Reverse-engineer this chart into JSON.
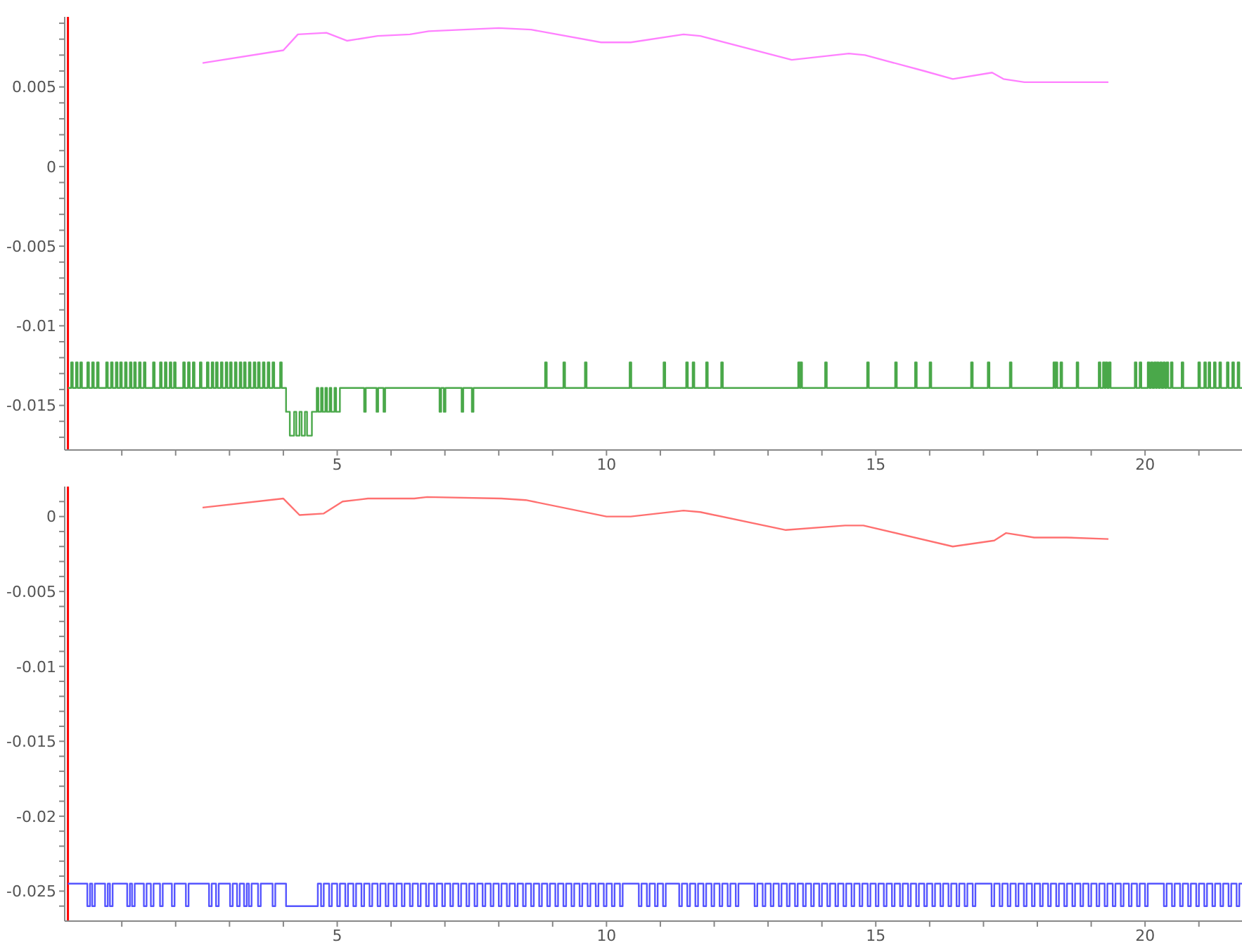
{
  "chart_data": [
    {
      "type": "line",
      "xlim": [
        -0.06,
        21.8
      ],
      "xticks": [
        {
          "value": 1,
          "label": null
        },
        {
          "value": 2,
          "label": null
        },
        {
          "value": 3,
          "label": null
        },
        {
          "value": 4,
          "label": null
        },
        5,
        {
          "value": 6,
          "label": null
        },
        {
          "value": 7,
          "label": null
        },
        {
          "value": 8,
          "label": null
        },
        {
          "value": 9,
          "label": null
        },
        10,
        {
          "value": 11,
          "label": null
        },
        {
          "value": 12,
          "label": null
        },
        {
          "value": 13,
          "label": null
        },
        {
          "value": 14,
          "label": null
        },
        15,
        {
          "value": 16,
          "label": null
        },
        {
          "value": 17,
          "label": null
        },
        {
          "value": 18,
          "label": null
        },
        {
          "value": 19,
          "label": null
        },
        20,
        {
          "value": 21,
          "label": null
        }
      ],
      "ylim": [
        -0.0178,
        0.0094
      ],
      "yticks": [
        {
          "value": -0.017,
          "label": null
        },
        {
          "value": -0.016,
          "label": null
        },
        -0.015,
        {
          "value": -0.014,
          "label": null
        },
        {
          "value": -0.013,
          "label": null
        },
        {
          "value": -0.012,
          "label": null
        },
        {
          "value": -0.011,
          "label": null
        },
        -0.01,
        {
          "value": -0.009,
          "label": null
        },
        {
          "value": -0.008,
          "label": null
        },
        {
          "value": -0.007,
          "label": null
        },
        {
          "value": -0.006,
          "label": null
        },
        -0.005,
        {
          "value": -0.004,
          "label": null
        },
        {
          "value": -0.003,
          "label": null
        },
        {
          "value": -0.002,
          "label": null
        },
        {
          "value": -0.001,
          "label": null
        },
        0,
        {
          "value": 0.001,
          "label": null
        },
        {
          "value": 0.002,
          "label": null
        },
        {
          "value": 0.003,
          "label": null
        },
        {
          "value": 0.004,
          "label": null
        },
        0.005,
        {
          "value": 0.006,
          "label": null
        },
        {
          "value": 0.007,
          "label": null
        },
        {
          "value": 0.008,
          "label": null
        },
        {
          "value": 0.009,
          "label": null
        }
      ],
      "ref_lines": [
        {
          "axis": "x",
          "value": 0,
          "color": "#ff0000"
        }
      ],
      "series": [
        {
          "type": "line",
          "color": "#ff80ff",
          "x": [
            2.5,
            4.0,
            4.27,
            4.8,
            5.18,
            5.75,
            6.35,
            6.7,
            8.0,
            8.6,
            9.9,
            10.45,
            11.43,
            11.74,
            13.44,
            14.5,
            14.8,
            15.9,
            16.43,
            17.16,
            17.37,
            17.76,
            19.32
          ],
          "values": [
            0.0065,
            0.0073,
            0.0083,
            0.0084,
            0.0079,
            0.0082,
            0.0083,
            0.0085,
            0.0087,
            0.0086,
            0.0078,
            0.0078,
            0.0083,
            0.0082,
            0.0067,
            0.0071,
            0.007,
            0.006,
            0.0055,
            0.0059,
            0.0055,
            0.0053,
            0.0053
          ]
        },
        {
          "type": "step",
          "color": "#4aa84a",
          "x": [
            0,
            0.06,
            0.09,
            0.15,
            0.18,
            0.23,
            0.26,
            0.36,
            0.39,
            0.45,
            0.48,
            0.54,
            0.57,
            0.71,
            0.74,
            0.8,
            0.83,
            0.89,
            0.92,
            0.97,
            1.0,
            1.06,
            1.09,
            1.15,
            1.18,
            1.23,
            1.26,
            1.32,
            1.35,
            1.41,
            1.44,
            1.58,
            1.61,
            1.71,
            1.74,
            1.8,
            1.83,
            1.89,
            1.92,
            1.97,
            2.0,
            2.14,
            2.17,
            2.23,
            2.26,
            2.32,
            2.35,
            2.45,
            2.48,
            2.58,
            2.61,
            2.67,
            2.7,
            2.75,
            2.78,
            2.84,
            2.87,
            2.93,
            2.96,
            3.01,
            3.04,
            3.1,
            3.13,
            3.19,
            3.22,
            3.27,
            3.3,
            3.36,
            3.39,
            3.45,
            3.48,
            3.53,
            3.56,
            3.62,
            3.65,
            3.71,
            3.74,
            3.8,
            3.83,
            3.94,
            3.97,
            4.05,
            4.12,
            4.2,
            4.24,
            4.3,
            4.34,
            4.4,
            4.44,
            4.53,
            4.62,
            4.65,
            4.7,
            4.73,
            4.78,
            4.81,
            4.86,
            4.89,
            4.95,
            4.98,
            5.05,
            5.5,
            5.53,
            5.73,
            5.76,
            5.86,
            5.89,
            6.9,
            6.93,
            6.98,
            7.01,
            7.31,
            7.34,
            7.5,
            7.53,
            8.86,
            8.89,
            9.2,
            9.23,
            9.6,
            9.63,
            10.43,
            10.46,
            11.06,
            11.09,
            11.48,
            11.51,
            11.6,
            11.63,
            11.85,
            11.88,
            12.13,
            12.16,
            13.56,
            13.59,
            13.6,
            13.63,
            14.06,
            14.09,
            14.84,
            14.87,
            15.36,
            15.39,
            15.73,
            15.76,
            16.0,
            16.03,
            16.77,
            16.8,
            17.08,
            17.11,
            17.49,
            17.52,
            18.3,
            18.33,
            18.34,
            18.37,
            18.43,
            18.46,
            18.73,
            18.76,
            19.14,
            19.17,
            19.22,
            19.25,
            19.27,
            19.3,
            19.33,
            19.36,
            19.81,
            19.84,
            19.9,
            19.93,
            20.05,
            20.08,
            20.11,
            20.14,
            20.17,
            20.2,
            20.22,
            20.25,
            20.28,
            20.31,
            20.34,
            20.37,
            20.4,
            20.43,
            20.48,
            20.51,
            20.68,
            20.71,
            20.99,
            21.02,
            21.1,
            21.13,
            21.18,
            21.21,
            21.28,
            21.31,
            21.38,
            21.41,
            21.52,
            21.55,
            21.62,
            21.65,
            21.72,
            21.75,
            21.8
          ],
          "values": [
            -0.0139,
            -0.0123,
            -0.0139,
            -0.0123,
            -0.0139,
            -0.0123,
            -0.0139,
            -0.0123,
            -0.0139,
            -0.0123,
            -0.0139,
            -0.0123,
            -0.0139,
            -0.0123,
            -0.0139,
            -0.0123,
            -0.0139,
            -0.0123,
            -0.0139,
            -0.0123,
            -0.0139,
            -0.0123,
            -0.0139,
            -0.0123,
            -0.0139,
            -0.0123,
            -0.0139,
            -0.0123,
            -0.0139,
            -0.0123,
            -0.0139,
            -0.0123,
            -0.0139,
            -0.0123,
            -0.0139,
            -0.0123,
            -0.0139,
            -0.0123,
            -0.0139,
            -0.0123,
            -0.0139,
            -0.0123,
            -0.0139,
            -0.0123,
            -0.0139,
            -0.0123,
            -0.0139,
            -0.0123,
            -0.0139,
            -0.0123,
            -0.0139,
            -0.0123,
            -0.0139,
            -0.0123,
            -0.0139,
            -0.0123,
            -0.0139,
            -0.0123,
            -0.0139,
            -0.0123,
            -0.0139,
            -0.0123,
            -0.0139,
            -0.0123,
            -0.0139,
            -0.0123,
            -0.0139,
            -0.0123,
            -0.0139,
            -0.0123,
            -0.0139,
            -0.0123,
            -0.0139,
            -0.0123,
            -0.0139,
            -0.0123,
            -0.0139,
            -0.0123,
            -0.0139,
            -0.0123,
            -0.0139,
            -0.0154,
            -0.0169,
            -0.0154,
            -0.0169,
            -0.0154,
            -0.0169,
            -0.0154,
            -0.0169,
            -0.0154,
            -0.0139,
            -0.0154,
            -0.0139,
            -0.0154,
            -0.0139,
            -0.0154,
            -0.0139,
            -0.0154,
            -0.0139,
            -0.0154,
            -0.0139,
            -0.0154,
            -0.0139,
            -0.0154,
            -0.0139,
            -0.0154,
            -0.0139,
            -0.0154,
            -0.0139,
            -0.0154,
            -0.0139,
            -0.0154,
            -0.0139,
            -0.0154,
            -0.0139,
            -0.0123,
            -0.0139,
            -0.0123,
            -0.0139,
            -0.0123,
            -0.0139,
            -0.0123,
            -0.0139,
            -0.0123,
            -0.0139,
            -0.0123,
            -0.0139,
            -0.0123,
            -0.0139,
            -0.0123,
            -0.0139,
            -0.0123,
            -0.0139,
            -0.0123,
            -0.0139,
            -0.0123,
            -0.0139,
            -0.0123,
            -0.0139,
            -0.0123,
            -0.0139,
            -0.0123,
            -0.0139,
            -0.0123,
            -0.0139,
            -0.0123,
            -0.0139,
            -0.0123,
            -0.0139,
            -0.0123,
            -0.0139,
            -0.0123,
            -0.0139,
            -0.0123,
            -0.0139,
            -0.0123,
            -0.0139,
            -0.0123,
            -0.0139,
            -0.0123,
            -0.0139,
            -0.0123,
            -0.0139,
            -0.0123,
            -0.0139,
            -0.0123,
            -0.0139,
            -0.0123,
            -0.0139,
            -0.0123,
            -0.0139,
            -0.0123,
            -0.0139,
            -0.0123,
            -0.0139,
            -0.0123,
            -0.0139,
            -0.0123,
            -0.0139,
            -0.0123,
            -0.0139,
            -0.0123,
            -0.0139,
            -0.0123,
            -0.0139,
            -0.0123,
            -0.0139,
            -0.0123,
            -0.0139,
            -0.0123,
            -0.0139,
            -0.0123,
            -0.0139,
            -0.0123,
            -0.0139,
            -0.0123,
            -0.0139,
            -0.0123,
            -0.0139,
            -0.0123,
            -0.0139,
            -0.0123,
            -0.0139,
            -0.0123,
            -0.0139,
            -0.0123,
            -0.0139,
            -0.0139
          ]
        }
      ]
    },
    {
      "type": "line",
      "xlim": [
        -0.06,
        21.8
      ],
      "xticks": [
        {
          "value": 1,
          "label": null
        },
        {
          "value": 2,
          "label": null
        },
        {
          "value": 3,
          "label": null
        },
        {
          "value": 4,
          "label": null
        },
        5,
        {
          "value": 6,
          "label": null
        },
        {
          "value": 7,
          "label": null
        },
        {
          "value": 8,
          "label": null
        },
        {
          "value": 9,
          "label": null
        },
        10,
        {
          "value": 11,
          "label": null
        },
        {
          "value": 12,
          "label": null
        },
        {
          "value": 13,
          "label": null
        },
        {
          "value": 14,
          "label": null
        },
        15,
        {
          "value": 16,
          "label": null
        },
        {
          "value": 17,
          "label": null
        },
        {
          "value": 18,
          "label": null
        },
        {
          "value": 19,
          "label": null
        },
        20,
        {
          "value": 21,
          "label": null
        }
      ],
      "ylim": [
        -0.027,
        0.002
      ],
      "yticks": [
        {
          "value": -0.026,
          "label": null
        },
        -0.025,
        {
          "value": -0.024,
          "label": null
        },
        {
          "value": -0.023,
          "label": null
        },
        {
          "value": -0.022,
          "label": null
        },
        {
          "value": -0.021,
          "label": null
        },
        -0.02,
        {
          "value": -0.019,
          "label": null
        },
        {
          "value": -0.018,
          "label": null
        },
        {
          "value": -0.017,
          "label": null
        },
        {
          "value": -0.016,
          "label": null
        },
        -0.015,
        {
          "value": -0.014,
          "label": null
        },
        {
          "value": -0.013,
          "label": null
        },
        {
          "value": -0.012,
          "label": null
        },
        {
          "value": -0.011,
          "label": null
        },
        -0.01,
        {
          "value": -0.009,
          "label": null
        },
        {
          "value": -0.008,
          "label": null
        },
        {
          "value": -0.007,
          "label": null
        },
        {
          "value": -0.006,
          "label": null
        },
        -0.005,
        {
          "value": -0.004,
          "label": null
        },
        {
          "value": -0.003,
          "label": null
        },
        {
          "value": -0.002,
          "label": null
        },
        {
          "value": -0.001,
          "label": null
        },
        0,
        {
          "value": 0.001,
          "label": null
        }
      ],
      "ref_lines": [
        {
          "axis": "x",
          "value": 0,
          "color": "#ff0000"
        }
      ],
      "series": [
        {
          "type": "line",
          "color": "#ff7070",
          "x": [
            2.5,
            4.0,
            4.3,
            4.75,
            5.1,
            5.57,
            6.43,
            6.67,
            8.05,
            8.5,
            10.0,
            10.45,
            11.43,
            11.74,
            13.33,
            14.43,
            14.77,
            16.43,
            17.2,
            17.42,
            17.94,
            18.54,
            19.32
          ],
          "values": [
            0.0006,
            0.0012,
            0.0001,
            0.0002,
            0.001,
            0.0012,
            0.0012,
            0.0013,
            0.0012,
            0.0011,
            0.0,
            0.0,
            0.0004,
            0.0003,
            -0.0009,
            -0.0006,
            -0.0006,
            -0.002,
            -0.0016,
            -0.0011,
            -0.0014,
            -0.0014,
            -0.0015
          ]
        },
        {
          "type": "step",
          "color": "#5555ff",
          "x": [
            0,
            0.36,
            0.41,
            0.45,
            0.5,
            0.69,
            0.74,
            0.78,
            0.83,
            1.1,
            1.15,
            1.19,
            1.24,
            1.41,
            1.46,
            1.54,
            1.59,
            1.71,
            1.76,
            1.93,
            1.98,
            2.19,
            2.24,
            2.62,
            2.67,
            2.75,
            2.8,
            3.01,
            3.06,
            3.14,
            3.19,
            3.27,
            3.32,
            3.36,
            3.41,
            3.53,
            3.58,
            3.8,
            3.85,
            4.05,
            4.64,
            4.7,
            4.75,
            4.85,
            4.9,
            5.0,
            5.05,
            5.15,
            5.2,
            5.3,
            5.35,
            5.45,
            5.5,
            5.6,
            5.65,
            5.75,
            5.8,
            5.9,
            5.95,
            6.05,
            6.1,
            6.2,
            6.25,
            6.35,
            6.4,
            6.5,
            6.55,
            6.65,
            6.7,
            6.8,
            6.85,
            6.95,
            7.0,
            7.1,
            7.15,
            7.25,
            7.3,
            7.4,
            7.45,
            7.55,
            7.6,
            7.7,
            7.75,
            7.85,
            7.9,
            8.0,
            8.05,
            8.15,
            8.2,
            8.3,
            8.35,
            8.45,
            8.5,
            8.6,
            8.65,
            8.75,
            8.8,
            8.9,
            8.95,
            9.05,
            9.1,
            9.2,
            9.25,
            9.35,
            9.4,
            9.5,
            9.55,
            9.65,
            9.7,
            9.8,
            9.85,
            9.95,
            10.0,
            10.1,
            10.15,
            10.25,
            10.3,
            10.6,
            10.65,
            10.75,
            10.8,
            10.9,
            10.95,
            11.05,
            11.1,
            11.35,
            11.4,
            11.5,
            11.55,
            11.65,
            11.7,
            11.8,
            11.85,
            11.95,
            12.0,
            12.1,
            12.15,
            12.25,
            12.3,
            12.4,
            12.45,
            12.75,
            12.8,
            12.9,
            12.95,
            13.05,
            13.1,
            13.2,
            13.25,
            13.35,
            13.4,
            13.5,
            13.55,
            13.65,
            13.7,
            13.8,
            13.85,
            13.95,
            14.0,
            14.1,
            14.15,
            14.25,
            14.3,
            14.4,
            14.45,
            14.55,
            14.6,
            14.7,
            14.75,
            14.85,
            14.9,
            15.0,
            15.05,
            15.15,
            15.2,
            15.3,
            15.35,
            15.45,
            15.5,
            15.6,
            15.65,
            15.75,
            15.8,
            15.9,
            15.95,
            16.05,
            16.1,
            16.2,
            16.25,
            16.35,
            16.4,
            16.5,
            16.55,
            16.65,
            16.7,
            16.8,
            16.85,
            17.15,
            17.2,
            17.3,
            17.35,
            17.45,
            17.5,
            17.6,
            17.65,
            17.75,
            17.8,
            17.9,
            17.95,
            18.05,
            18.1,
            18.2,
            18.25,
            18.35,
            18.4,
            18.5,
            18.55,
            18.65,
            18.7,
            18.8,
            18.85,
            18.95,
            19.0,
            19.1,
            19.15,
            19.25,
            19.3,
            19.4,
            19.45,
            19.55,
            19.6,
            19.7,
            19.75,
            19.85,
            19.9,
            20.0,
            20.05,
            20.35,
            20.4,
            20.5,
            20.55,
            20.65,
            20.7,
            20.8,
            20.85,
            20.95,
            21.0,
            21.1,
            21.15,
            21.25,
            21.3,
            21.4,
            21.45,
            21.55,
            21.6,
            21.7,
            21.75,
            21.8
          ],
          "values": [
            -0.0245,
            -0.026,
            -0.0245,
            -0.026,
            -0.0245,
            -0.026,
            -0.0245,
            -0.026,
            -0.0245,
            -0.026,
            -0.0245,
            -0.026,
            -0.0245,
            -0.026,
            -0.0245,
            -0.026,
            -0.0245,
            -0.026,
            -0.0245,
            -0.026,
            -0.0245,
            -0.026,
            -0.0245,
            -0.026,
            -0.0245,
            -0.026,
            -0.0245,
            -0.026,
            -0.0245,
            -0.026,
            -0.0245,
            -0.026,
            -0.0245,
            -0.026,
            -0.0245,
            -0.026,
            -0.0245,
            -0.026,
            -0.0245,
            -0.026,
            -0.0245,
            -0.026,
            -0.0245,
            -0.026,
            -0.0245,
            -0.026,
            -0.0245,
            -0.026,
            -0.0245,
            -0.026,
            -0.0245,
            -0.026,
            -0.0245,
            -0.026,
            -0.0245,
            -0.026,
            -0.0245,
            -0.026,
            -0.0245,
            -0.026,
            -0.0245,
            -0.026,
            -0.0245,
            -0.026,
            -0.0245,
            -0.026,
            -0.0245,
            -0.026,
            -0.0245,
            -0.026,
            -0.0245,
            -0.026,
            -0.0245,
            -0.026,
            -0.0245,
            -0.026,
            -0.0245,
            -0.026,
            -0.0245,
            -0.026,
            -0.0245,
            -0.026,
            -0.0245,
            -0.026,
            -0.0245,
            -0.026,
            -0.0245,
            -0.026,
            -0.0245,
            -0.026,
            -0.0245,
            -0.026,
            -0.0245,
            -0.026,
            -0.0245,
            -0.026,
            -0.0245,
            -0.026,
            -0.0245,
            -0.026,
            -0.0245,
            -0.026,
            -0.0245,
            -0.026,
            -0.0245,
            -0.026,
            -0.0245,
            -0.026,
            -0.0245,
            -0.026,
            -0.0245,
            -0.026,
            -0.0245,
            -0.026,
            -0.0245,
            -0.026,
            -0.0245,
            -0.026,
            -0.0245,
            -0.026,
            -0.0245,
            -0.026,
            -0.0245,
            -0.026,
            -0.0245,
            -0.026,
            -0.0245,
            -0.026,
            -0.0245,
            -0.026,
            -0.0245,
            -0.026,
            -0.0245,
            -0.026,
            -0.0245,
            -0.026,
            -0.0245,
            -0.026,
            -0.0245,
            -0.026,
            -0.0245,
            -0.026,
            -0.0245,
            -0.026,
            -0.0245,
            -0.026,
            -0.0245,
            -0.026,
            -0.0245,
            -0.026,
            -0.0245,
            -0.026,
            -0.0245,
            -0.026,
            -0.0245,
            -0.026,
            -0.0245,
            -0.026,
            -0.0245,
            -0.026,
            -0.0245,
            -0.026,
            -0.0245,
            -0.026,
            -0.0245,
            -0.026,
            -0.0245,
            -0.026,
            -0.0245,
            -0.026,
            -0.0245,
            -0.026,
            -0.0245,
            -0.026,
            -0.0245,
            -0.026,
            -0.0245,
            -0.026,
            -0.0245,
            -0.026,
            -0.0245,
            -0.026,
            -0.0245,
            -0.026,
            -0.0245,
            -0.026,
            -0.0245,
            -0.026,
            -0.0245,
            -0.026,
            -0.0245,
            -0.026,
            -0.0245,
            -0.026,
            -0.0245,
            -0.026,
            -0.0245,
            -0.026,
            -0.0245,
            -0.026,
            -0.0245,
            -0.026,
            -0.0245,
            -0.026,
            -0.0245,
            -0.026,
            -0.0245,
            -0.026,
            -0.0245,
            -0.026,
            -0.0245,
            -0.026,
            -0.0245,
            -0.026,
            -0.0245,
            -0.026,
            -0.0245,
            -0.026,
            -0.0245,
            -0.026,
            -0.0245,
            -0.026,
            -0.0245,
            -0.026,
            -0.0245,
            -0.026,
            -0.0245,
            -0.026,
            -0.0245,
            -0.026,
            -0.0245,
            -0.026,
            -0.0245,
            -0.026,
            -0.0245,
            -0.026,
            -0.0245,
            -0.026,
            -0.0245,
            -0.026,
            -0.0245,
            -0.026,
            -0.0245,
            -0.026,
            -0.0245,
            -0.026,
            -0.0245,
            -0.026,
            -0.0245,
            -0.026,
            -0.0245,
            -0.026,
            -0.0245,
            -0.026,
            -0.0245,
            -0.026,
            -0.0245,
            -0.0245
          ]
        }
      ]
    }
  ]
}
